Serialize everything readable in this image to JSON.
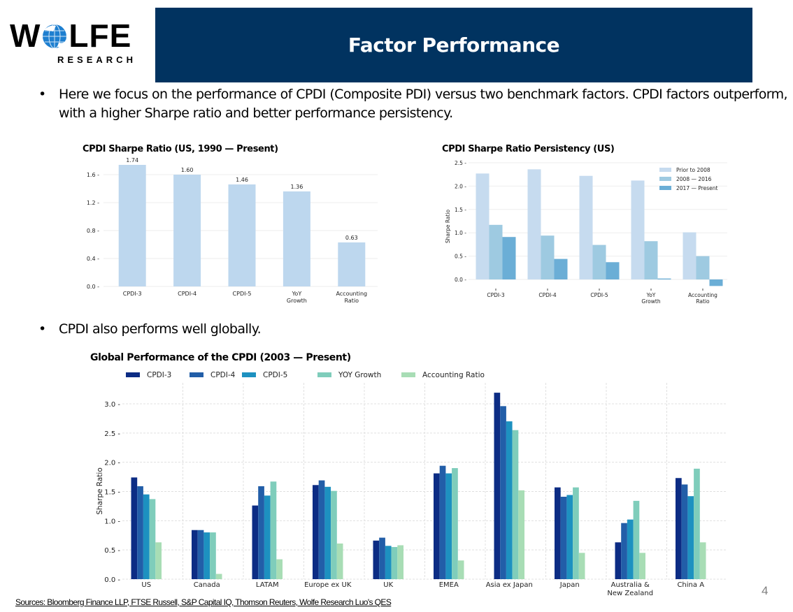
{
  "brand": {
    "logo_text_left": "W",
    "logo_text_right": "LFE",
    "logo_sub": "RESEARCH",
    "globe_icon": "globe-icon",
    "globe_color": "#1e7fd0"
  },
  "header": {
    "title": "Factor Performance",
    "band_color": "#013360"
  },
  "bullets": [
    {
      "marker": "•",
      "text": "Here we focus on the performance of CPDI (Composite PDI) versus two benchmark factors. CPDI factors outperform, with a higher Sharpe ratio and better performance persistency."
    },
    {
      "marker": "•",
      "text": "CPDI also performs well globally."
    }
  ],
  "footer": {
    "sources": "Sources: Bloomberg Finance LLP, FTSE Russell, S&P Capital IQ, Thomson Reuters, Wolfe Research Luo's QES",
    "page_number": "4"
  },
  "chart_data": [
    {
      "type": "bar",
      "title": "CPDI Sharpe Ratio (US, 1990 — Present)",
      "categories": [
        "CPDI-3",
        "CPDI-4",
        "CPDI-5",
        "YoY\nGrowth",
        "Accounting\nRatio"
      ],
      "values": [
        1.74,
        1.6,
        1.46,
        1.36,
        0.63
      ],
      "data_labels": [
        "1.74",
        "1.60",
        "1.46",
        "1.36",
        "0.63"
      ],
      "xlabel": "",
      "ylabel": "",
      "ylim": [
        0,
        1.8
      ],
      "yticks": [
        0.0,
        0.4,
        0.8,
        1.2,
        1.6
      ],
      "ytick_labels": [
        "0.0",
        "0.4",
        "0.8",
        "1.2",
        "1.6"
      ],
      "color": "#bdd7ee",
      "grid": true
    },
    {
      "type": "bar",
      "title": "CPDI Sharpe Ratio Persistency (US)",
      "categories": [
        "CPDI-3",
        "CPDI-4",
        "CPDI-5",
        "YoY\nGrowth",
        "Accounting\nRatio"
      ],
      "series": [
        {
          "name": "Prior to 2008",
          "color": "#c6dbef",
          "values": [
            2.27,
            2.36,
            2.22,
            2.12,
            1.01
          ]
        },
        {
          "name": "2008 — 2016",
          "color": "#9ecae1",
          "values": [
            1.17,
            0.94,
            0.74,
            0.82,
            0.5
          ]
        },
        {
          "name": "2017 — Present",
          "color": "#6baed6",
          "values": [
            0.91,
            0.44,
            0.37,
            0.02,
            -0.14
          ]
        }
      ],
      "xlabel": "",
      "ylabel": "Sharpe Ratio",
      "ylim": [
        -0.2,
        2.5
      ],
      "yticks": [
        0.0,
        0.5,
        1.0,
        1.5,
        2.0,
        2.5
      ],
      "ytick_labels": [
        "0.0",
        "0.5",
        "1.0",
        "1.5",
        "2.0",
        "2.5"
      ],
      "legend": "top-right",
      "grid": true
    },
    {
      "type": "bar",
      "title": "Global Performance of the CPDI (2003 — Present)",
      "categories": [
        "US",
        "Canada",
        "LATAM",
        "Europe ex UK",
        "UK",
        "EMEA",
        "Asia ex Japan",
        "Japan",
        "Australia &\nNew Zealand",
        "China A"
      ],
      "series": [
        {
          "name": "CPDI-3",
          "color": "#0c2c84",
          "values": [
            1.74,
            0.84,
            1.26,
            1.61,
            0.66,
            1.81,
            3.19,
            1.57,
            0.63,
            1.73
          ]
        },
        {
          "name": "CPDI-4",
          "color": "#225ea8",
          "values": [
            1.59,
            0.84,
            1.59,
            1.69,
            0.71,
            1.94,
            2.96,
            1.41,
            0.96,
            1.62
          ]
        },
        {
          "name": "CPDI-5",
          "color": "#1d91c0",
          "values": [
            1.45,
            0.8,
            1.43,
            1.58,
            0.57,
            1.81,
            2.7,
            1.44,
            1.02,
            1.42
          ]
        },
        {
          "name": "YOY Growth",
          "color": "#7fcdbb",
          "values": [
            1.37,
            0.8,
            1.67,
            1.51,
            0.55,
            1.9,
            2.55,
            1.57,
            1.34,
            1.89
          ]
        },
        {
          "name": "Accounting Ratio",
          "color": "#a8ddb5",
          "values": [
            0.63,
            0.09,
            0.34,
            0.61,
            0.58,
            0.32,
            1.52,
            0.45,
            0.45,
            0.63
          ]
        }
      ],
      "xlabel": "",
      "ylabel": "Sharpe Ratio",
      "ylim": [
        0,
        3.3
      ],
      "yticks": [
        0.0,
        0.5,
        1.0,
        1.5,
        2.0,
        2.5,
        3.0
      ],
      "ytick_labels": [
        "0.0",
        "0.5",
        "1.0",
        "1.5",
        "2.0",
        "2.5",
        "3.0"
      ],
      "legend": "top",
      "grid": true
    }
  ]
}
